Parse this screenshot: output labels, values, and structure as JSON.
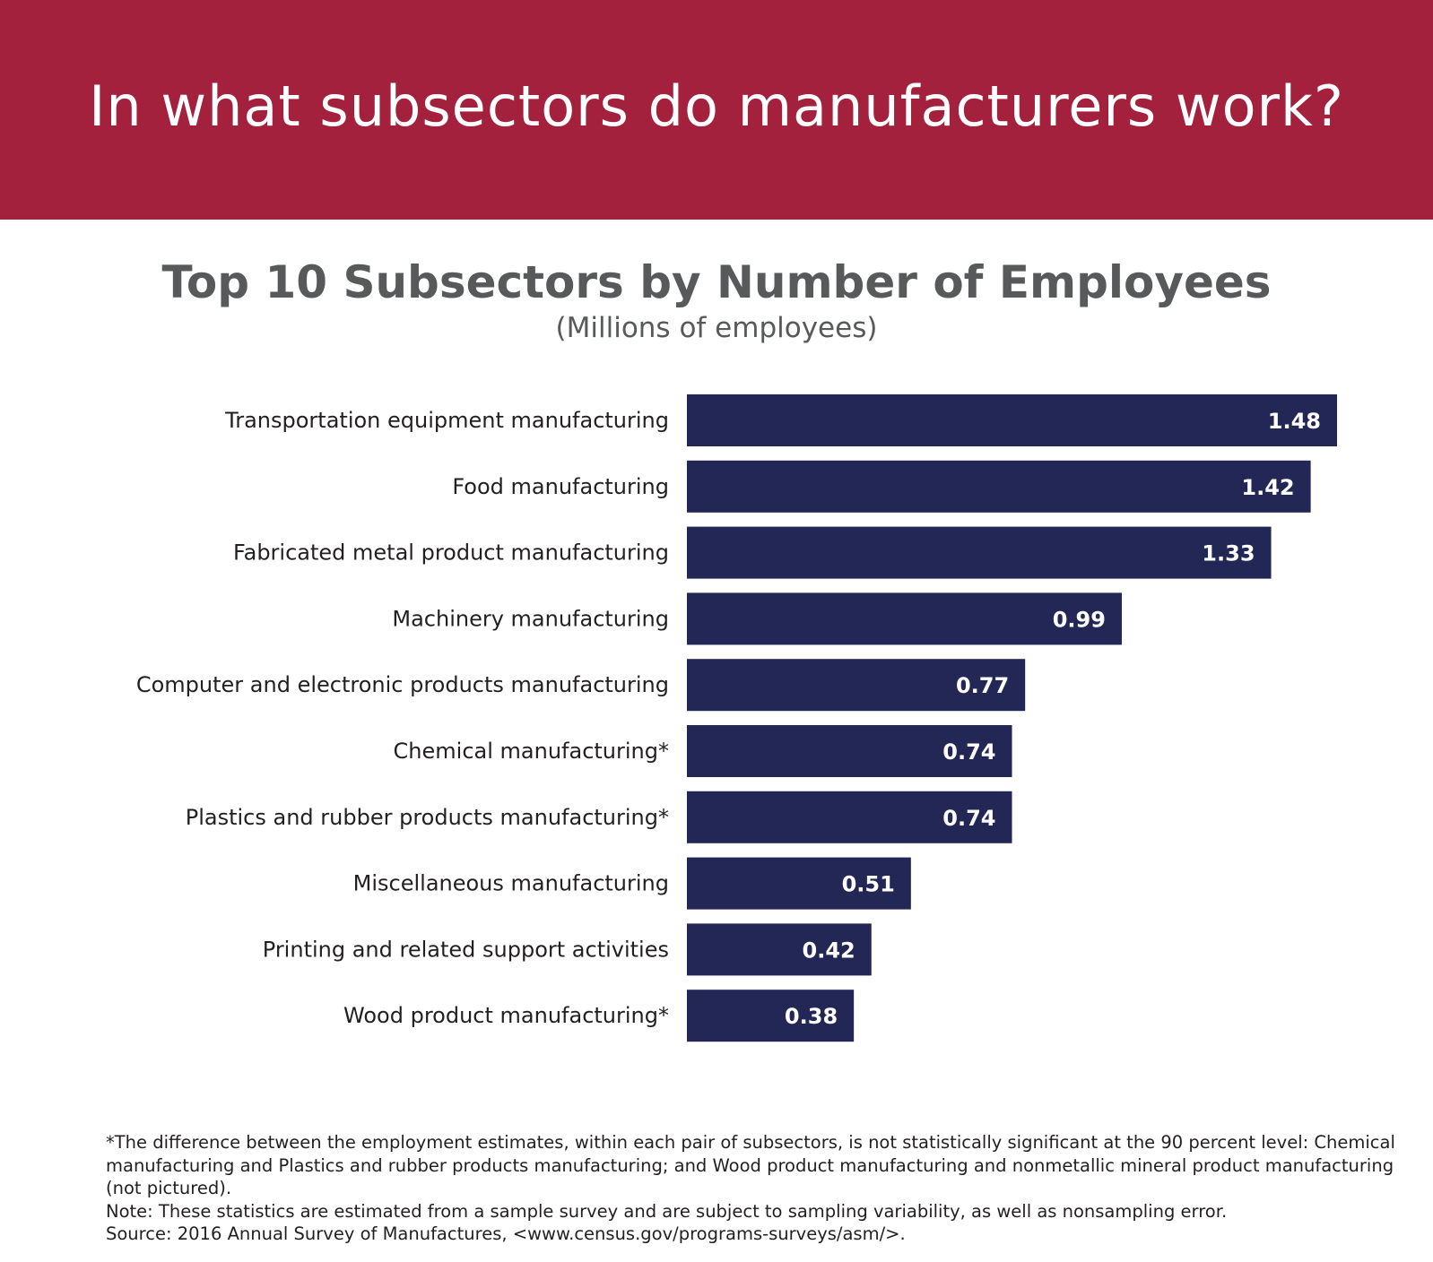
{
  "banner": {
    "title": "In what subsectors do manufacturers work?",
    "color": "#a4213e"
  },
  "chart_data": {
    "type": "bar",
    "orientation": "horizontal",
    "title": "Top 10 Subsectors by Number of Employees",
    "subtitle": "(Millions of employees)",
    "categories": [
      "Transportation equipment manufacturing",
      "Food manufacturing",
      "Fabricated metal product manufacturing",
      "Machinery manufacturing",
      "Computer and electronic products manufacturing",
      "Chemical manufacturing*",
      "Plastics and rubber products manufacturing*",
      "Miscellaneous manufacturing",
      "Printing and related support activities",
      "Wood product manufacturing*"
    ],
    "values": [
      1.48,
      1.42,
      1.33,
      0.99,
      0.77,
      0.74,
      0.74,
      0.51,
      0.42,
      0.38
    ],
    "value_labels": [
      "1.48",
      "1.42",
      "1.33",
      "0.99",
      "0.77",
      "0.74",
      "0.74",
      "0.51",
      "0.42",
      "0.38"
    ],
    "xlim": [
      0,
      1.48
    ],
    "bar_color": "#222756",
    "grid": false,
    "legend": "none"
  },
  "footnotes": {
    "asterisk_note": "*The difference between the employment estimates, within each pair of subsectors, is not statistically significant at the 90 percent level: Chemical manufacturing and Plastics and rubber products manufacturing; and Wood product manufacturing and nonmetallic mineral product manufacturing (not pictured).",
    "note": "Note: These statistics are estimated from a sample survey and are subject to sampling variability, as well as nonsampling error.",
    "source": "Source: 2016 Annual Survey of Manufactures, <www.census.gov/programs-surveys/asm/>."
  }
}
